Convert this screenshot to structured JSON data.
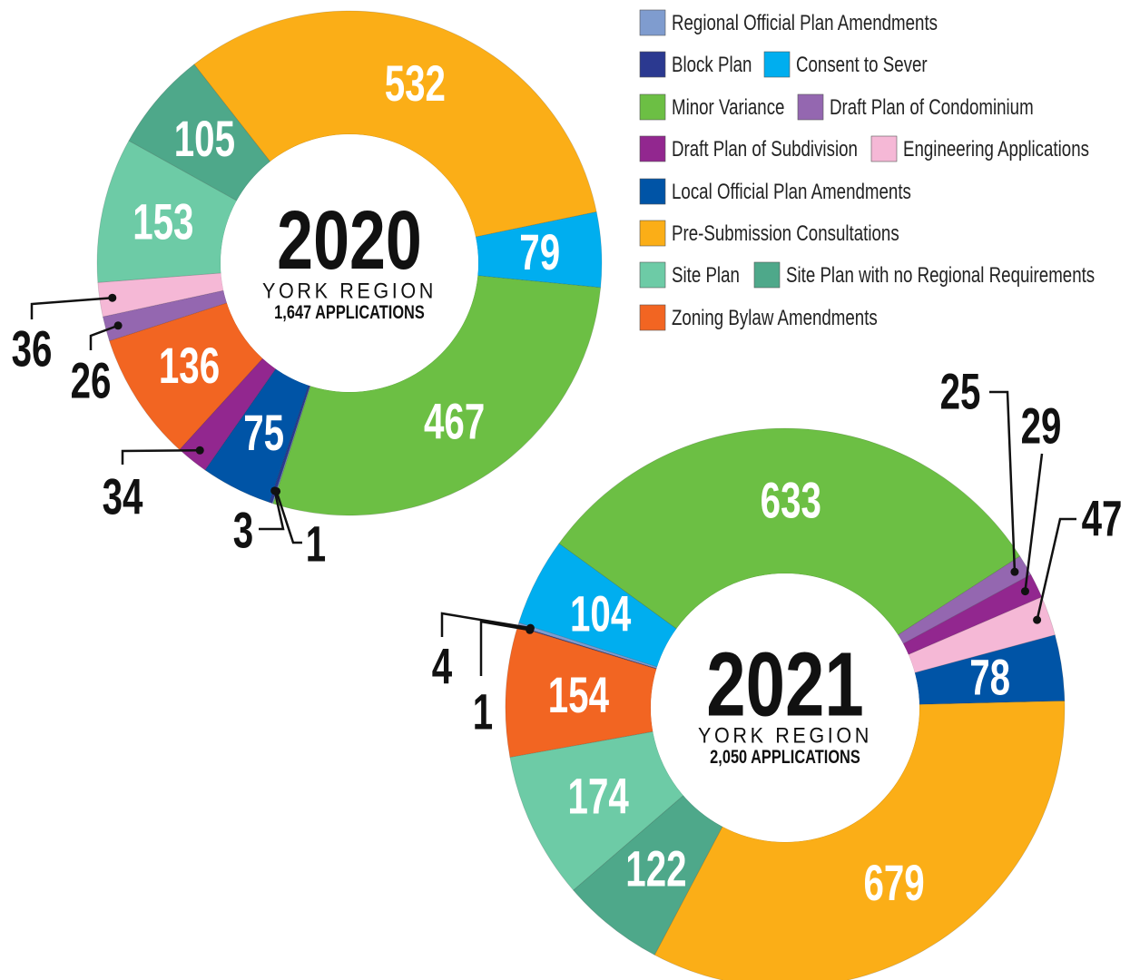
{
  "legend": {
    "items": [
      {
        "name": "Regional Official Plan Amendments",
        "color": "#7f9ccf"
      },
      {
        "name": "Block Plan",
        "color": "#2b3990"
      },
      {
        "name": "Consent to Sever",
        "color": "#00aeef"
      },
      {
        "name": "Minor Variance",
        "color": "#6cbf44"
      },
      {
        "name": "Draft Plan of Condominium",
        "color": "#9467b0"
      },
      {
        "name": "Draft Plan of Subdivision",
        "color": "#92278f"
      },
      {
        "name": "Engineering Applications",
        "color": "#f5b8d6"
      },
      {
        "name": "Local Official Plan Amendments",
        "color": "#0054a6"
      },
      {
        "name": "Pre-Submission Consultations",
        "color": "#fbae17"
      },
      {
        "name": "Site Plan",
        "color": "#6dcba6"
      },
      {
        "name": "Site Plan with no Regional Requirements",
        "color": "#4ea88a"
      },
      {
        "name": "Zoning Bylaw Amendments",
        "color": "#f26522"
      }
    ]
  },
  "chart_data": [
    {
      "type": "pie",
      "title": "2020",
      "subtitle": "YORK REGION",
      "total_label": "1,647 APPLICATIONS",
      "categories": [
        "Pre-Submission Consultations",
        "Consent to Sever",
        "Minor Variance",
        "Regional Official Plan Amendments",
        "Block Plan",
        "Local Official Plan Amendments",
        "Draft Plan of Subdivision",
        "Zoning Bylaw Amendments",
        "Draft Plan of Condominium",
        "Engineering Applications",
        "Site Plan",
        "Site Plan with no Regional Requirements"
      ],
      "values": [
        532,
        79,
        467,
        1,
        3,
        75,
        34,
        136,
        26,
        36,
        153,
        105
      ]
    },
    {
      "type": "pie",
      "title": "2021",
      "subtitle": "YORK REGION",
      "total_label": "2,050 APPLICATIONS",
      "categories": [
        "Minor Variance",
        "Draft Plan of Condominium",
        "Draft Plan of Subdivision",
        "Engineering Applications",
        "Local Official Plan Amendments",
        "Pre-Submission Consultations",
        "Site Plan with no Regional Requirements",
        "Site Plan",
        "Zoning Bylaw Amendments",
        "Block Plan",
        "Regional Official Plan Amendments",
        "Consent to Sever"
      ],
      "values": [
        633,
        25,
        29,
        47,
        78,
        679,
        122,
        174,
        154,
        1,
        4,
        104
      ]
    }
  ]
}
